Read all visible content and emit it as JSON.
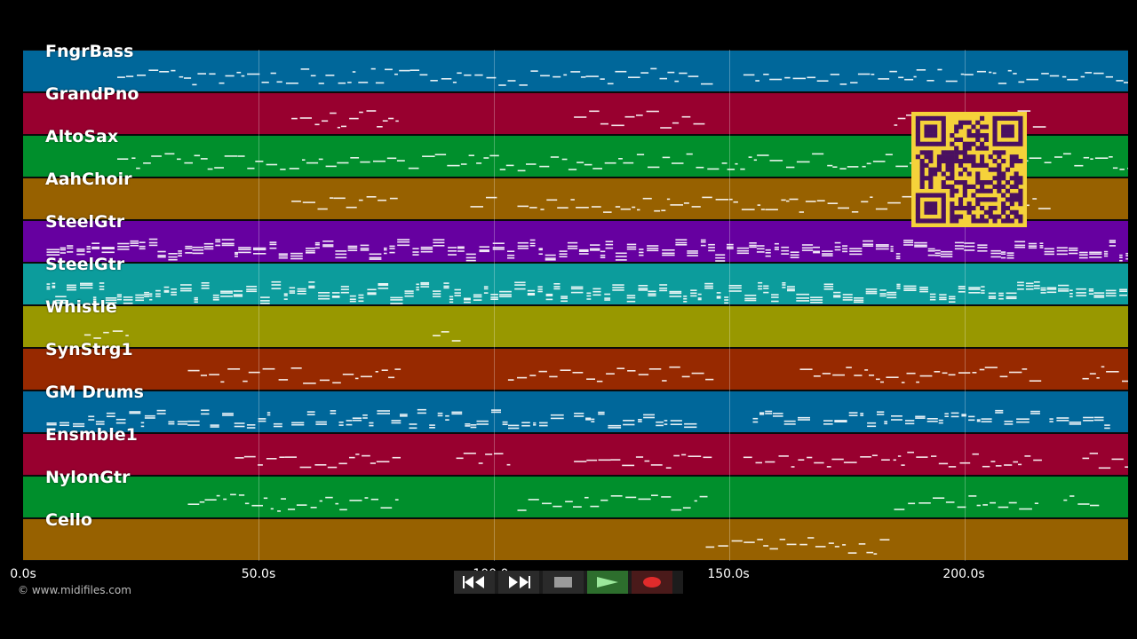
{
  "tracks": [
    {
      "name": "FngrBass",
      "color": "#00679a"
    },
    {
      "name": "GrandPno",
      "color": "#98002f"
    },
    {
      "name": "AltoSax",
      "color": "#008f2c"
    },
    {
      "name": "AahChoir",
      "color": "#976100"
    },
    {
      "name": "SteelGtr",
      "color": "#6600a0"
    },
    {
      "name": "SteelGtr",
      "color": "#0c9c9c"
    },
    {
      "name": "Whistle",
      "color": "#989800"
    },
    {
      "name": "SynStrg1",
      "color": "#972900"
    },
    {
      "name": "GM Drums",
      "color": "#00679a"
    },
    {
      "name": "Ensmble1",
      "color": "#98002f"
    },
    {
      "name": "NylonGtr",
      "color": "#008f2c"
    },
    {
      "name": "Cello",
      "color": "#976100"
    }
  ],
  "timeline": {
    "ticks": [
      {
        "label": "0.0s",
        "seconds": 0
      },
      {
        "label": "50.0s",
        "seconds": 50
      },
      {
        "label": "100.0s",
        "seconds": 100
      },
      {
        "label": "150.0s",
        "seconds": 150
      },
      {
        "label": "200.0s",
        "seconds": 200
      }
    ],
    "max_seconds": 235
  },
  "copyright": "© www.midifiles.com",
  "transport": {
    "buttons": [
      {
        "name": "rewind-button",
        "icon": "rewind-icon"
      },
      {
        "name": "fast-forward-button",
        "icon": "fast-forward-icon"
      },
      {
        "name": "stop-button",
        "icon": "stop-icon"
      },
      {
        "name": "play-button",
        "icon": "play-icon"
      },
      {
        "name": "record-button",
        "icon": "record-icon"
      }
    ]
  },
  "qr_code": {
    "icon": "qr-code-icon",
    "color": "#f5d23a",
    "dark_color": "#4a1060"
  },
  "note_color": "#ffffff"
}
